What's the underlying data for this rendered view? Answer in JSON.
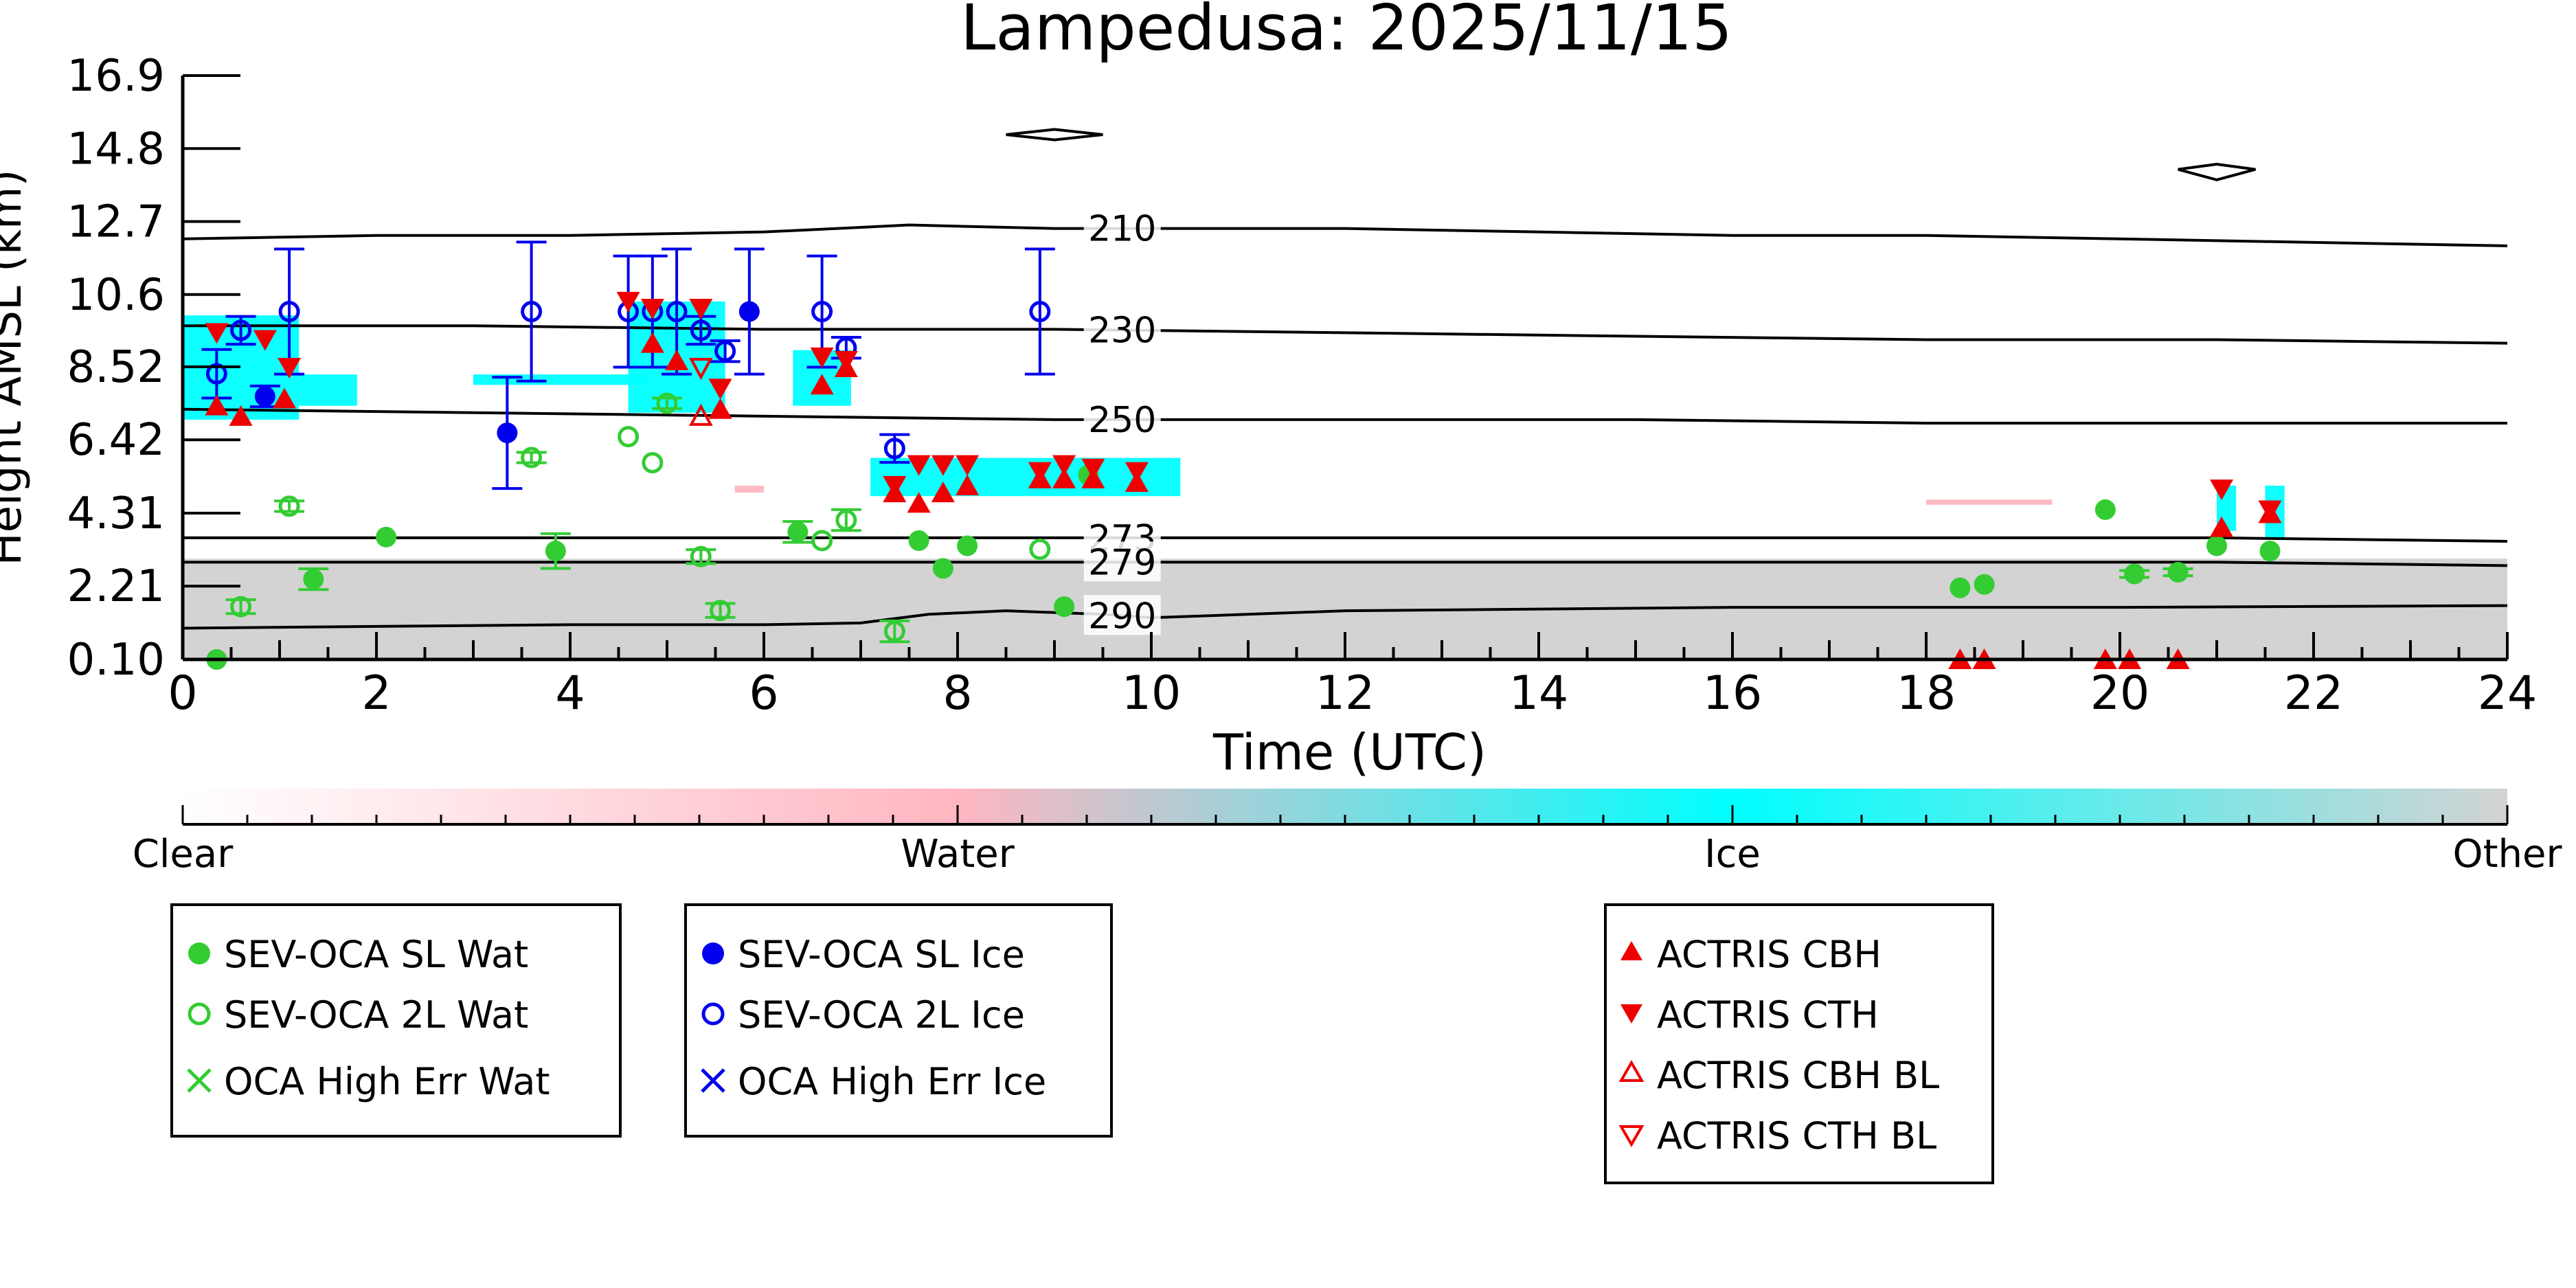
{
  "chart_data": {
    "type": "scatter",
    "title": "Lampedusa: 2025/11/15",
    "xlabel": "Time (UTC)",
    "ylabel": "Height AMSL (km)",
    "xlim": [
      0,
      24
    ],
    "ylim": [
      0.1,
      16.9
    ],
    "x_ticks": [
      "0",
      "2",
      "4",
      "6",
      "8",
      "10",
      "12",
      "14",
      "16",
      "18",
      "20",
      "22",
      "24"
    ],
    "y_ticks": [
      "0.10",
      "2.21",
      "4.31",
      "6.42",
      "8.52",
      "10.6",
      "12.7",
      "14.8",
      "16.9"
    ],
    "y_tick_values": [
      0.1,
      2.21,
      4.31,
      6.42,
      8.52,
      10.6,
      12.7,
      14.8,
      16.9
    ],
    "colors": {
      "sev_wat": "#33cc33",
      "sev_ice": "#0000ee",
      "actris": "#ee0000",
      "clear": "#ffffff",
      "water": "#ffb6c1",
      "ice": "#00ffff",
      "other": "#d3d3d3"
    },
    "isotherms": [
      {
        "label": "210",
        "x": [
          0,
          2,
          4,
          6,
          7.5,
          9,
          10,
          12,
          14,
          16,
          18,
          20,
          22,
          24
        ],
        "y": [
          12.2,
          12.3,
          12.3,
          12.4,
          12.6,
          12.5,
          12.5,
          12.5,
          12.4,
          12.3,
          12.3,
          12.2,
          12.1,
          12.0
        ]
      },
      {
        "label": "230",
        "x": [
          0,
          3,
          6,
          9,
          12,
          15,
          18,
          21,
          24
        ],
        "y": [
          9.7,
          9.7,
          9.6,
          9.6,
          9.5,
          9.4,
          9.3,
          9.3,
          9.2
        ]
      },
      {
        "label": "250",
        "x": [
          0,
          3,
          6,
          9,
          12,
          15,
          18,
          21,
          24
        ],
        "y": [
          7.3,
          7.2,
          7.1,
          7.0,
          7.0,
          7.0,
          6.9,
          6.9,
          6.9
        ]
      },
      {
        "label": "273",
        "x": [
          0,
          3,
          6,
          9,
          12,
          15,
          18,
          21,
          24
        ],
        "y": [
          3.6,
          3.6,
          3.6,
          3.6,
          3.6,
          3.6,
          3.6,
          3.6,
          3.5
        ]
      },
      {
        "label": "279",
        "x": [
          0,
          3,
          6,
          9,
          12,
          15,
          18,
          21,
          24
        ],
        "y": [
          2.9,
          2.9,
          2.9,
          2.9,
          2.9,
          2.9,
          2.9,
          2.9,
          2.8
        ]
      },
      {
        "label": "290",
        "x": [
          0,
          2,
          4,
          6,
          7,
          7.7,
          8.5,
          9.5,
          10,
          12,
          16,
          20,
          24
        ],
        "y": [
          1.0,
          1.05,
          1.1,
          1.1,
          1.15,
          1.4,
          1.5,
          1.4,
          1.3,
          1.5,
          1.6,
          1.6,
          1.65
        ]
      }
    ],
    "contours": [
      {
        "x": [
          8.5,
          9.0,
          9.5,
          9.0,
          8.5
        ],
        "y": [
          15.2,
          15.35,
          15.2,
          15.05,
          15.2
        ]
      },
      {
        "x": [
          20.6,
          21.0,
          21.4,
          21.0,
          20.6
        ],
        "y": [
          14.2,
          14.35,
          14.2,
          13.9,
          14.2
        ]
      }
    ],
    "classification_regions": [
      {
        "class": "other",
        "x": [
          0,
          24
        ],
        "y": [
          0.1,
          3.0
        ]
      },
      {
        "class": "ice",
        "x": [
          0.0,
          1.2
        ],
        "y": [
          7.0,
          10.0
        ]
      },
      {
        "class": "ice",
        "x": [
          1.2,
          1.8
        ],
        "y": [
          7.4,
          8.3
        ]
      },
      {
        "class": "ice",
        "x": [
          3.0,
          4.8
        ],
        "y": [
          8.0,
          8.3
        ]
      },
      {
        "class": "ice",
        "x": [
          4.6,
          5.6
        ],
        "y": [
          7.2,
          10.4
        ]
      },
      {
        "class": "ice",
        "x": [
          6.3,
          6.9
        ],
        "y": [
          7.4,
          9.0
        ]
      },
      {
        "class": "ice",
        "x": [
          7.1,
          10.3
        ],
        "y": [
          4.8,
          5.9
        ]
      },
      {
        "class": "ice",
        "x": [
          21.0,
          21.2
        ],
        "y": [
          3.8,
          5.1
        ]
      },
      {
        "class": "ice",
        "x": [
          21.5,
          21.7
        ],
        "y": [
          3.6,
          5.1
        ]
      },
      {
        "class": "water",
        "x": [
          18.0,
          19.3
        ],
        "y": [
          4.55,
          4.7
        ]
      },
      {
        "class": "water",
        "x": [
          5.7,
          6.0
        ],
        "y": [
          4.9,
          5.1
        ]
      }
    ],
    "series": [
      {
        "name": "SEV-OCA SL Wat",
        "marker": "filled-circle",
        "color": "#33cc33",
        "x": [
          0.35,
          1.35,
          2.1,
          3.85,
          6.35,
          7.6,
          7.85,
          8.1,
          9.1,
          9.35,
          18.35,
          18.6,
          19.85,
          20.15,
          20.6,
          21.0,
          21.55
        ],
        "y": [
          0.1,
          2.41,
          3.62,
          3.22,
          3.77,
          3.52,
          2.72,
          3.37,
          1.62,
          5.41,
          2.16,
          2.26,
          4.41,
          2.56,
          2.61,
          3.37,
          3.22
        ],
        "err": [
          0,
          0.3,
          0,
          0.5,
          0.3,
          0,
          0,
          0,
          0,
          0,
          0,
          0,
          0,
          0.1,
          0.1,
          0,
          0
        ]
      },
      {
        "name": "SEV-OCA 2L Wat",
        "marker": "open-circle",
        "color": "#33cc33",
        "x": [
          0.6,
          1.1,
          3.6,
          4.6,
          4.85,
          5.0,
          5.35,
          5.55,
          6.6,
          6.85,
          7.35,
          8.85
        ],
        "y": [
          1.62,
          4.51,
          5.91,
          6.51,
          5.76,
          7.47,
          3.06,
          1.51,
          3.52,
          4.11,
          0.91,
          3.27
        ],
        "err": [
          0.2,
          0.15,
          0.15,
          0,
          0,
          0.15,
          0.2,
          0.2,
          0,
          0.3,
          0.3,
          0
        ]
      },
      {
        "name": "OCA High Err Wat",
        "marker": "x",
        "color": "#33cc33",
        "x": [],
        "y": []
      },
      {
        "name": "SEV-OCA SL Ice",
        "marker": "filled-circle",
        "color": "#0000ee",
        "x": [
          0.85,
          3.35,
          5.85
        ],
        "y": [
          7.67,
          6.62,
          10.11
        ],
        "err": [
          0.3,
          1.6,
          1.8
        ]
      },
      {
        "name": "SEV-OCA 2L Ice",
        "marker": "open-circle",
        "color": "#0000ee",
        "x": [
          0.35,
          0.6,
          1.1,
          3.6,
          4.6,
          4.85,
          5.1,
          5.35,
          5.6,
          6.6,
          6.85,
          7.35,
          8.85
        ],
        "y": [
          8.32,
          9.57,
          10.11,
          10.11,
          10.11,
          10.11,
          10.11,
          9.57,
          8.97,
          10.11,
          9.07,
          6.17,
          10.11
        ],
        "err": [
          0.7,
          0.4,
          1.8,
          2.0,
          1.6,
          1.6,
          1.8,
          0.4,
          0.3,
          1.6,
          0.3,
          0.4,
          1.8
        ]
      },
      {
        "name": "OCA High Err Ice",
        "marker": "x",
        "color": "#0000ee",
        "x": [],
        "y": []
      },
      {
        "name": "ACTRIS CBH",
        "marker": "filled-triangle-up",
        "color": "#ee0000",
        "x": [
          0.35,
          0.6,
          1.05,
          4.85,
          5.1,
          5.55,
          6.6,
          6.85,
          7.35,
          7.6,
          7.85,
          8.1,
          8.85,
          9.1,
          9.4,
          9.85,
          18.35,
          18.6,
          19.85,
          20.1,
          20.6,
          21.05,
          21.55
        ],
        "y": [
          7.4,
          7.1,
          7.6,
          9.2,
          8.7,
          7.3,
          8.0,
          8.5,
          4.9,
          4.6,
          4.9,
          5.1,
          5.3,
          5.3,
          5.3,
          5.2,
          0.1,
          0.1,
          0.1,
          0.1,
          0.1,
          3.9,
          4.3
        ]
      },
      {
        "name": "ACTRIS CTH",
        "marker": "filled-triangle-down",
        "color": "#ee0000",
        "x": [
          0.35,
          0.85,
          1.1,
          4.6,
          4.85,
          5.35,
          5.55,
          6.6,
          6.85,
          7.35,
          7.6,
          7.85,
          8.1,
          8.85,
          9.1,
          9.4,
          9.85,
          21.05,
          21.55
        ],
        "y": [
          9.5,
          9.3,
          8.5,
          10.4,
          10.2,
          10.2,
          7.9,
          8.8,
          8.7,
          5.1,
          5.7,
          5.7,
          5.7,
          5.5,
          5.7,
          5.6,
          5.5,
          5.0,
          4.4
        ]
      },
      {
        "name": "ACTRIS CBH BL",
        "marker": "open-triangle-up",
        "color": "#ee0000",
        "x": [
          5.35
        ],
        "y": [
          7.1
        ]
      },
      {
        "name": "ACTRIS CTH BL",
        "marker": "open-triangle-down",
        "color": "#ee0000",
        "x": [
          5.35
        ],
        "y": [
          8.5
        ]
      }
    ],
    "colorbar": {
      "labels": [
        "Clear",
        "Water",
        "Ice",
        "Other"
      ]
    },
    "legend_boxes": [
      [
        "SEV-OCA SL Wat",
        "SEV-OCA 2L Wat",
        "OCA High Err Wat"
      ],
      [
        "SEV-OCA SL Ice",
        "SEV-OCA 2L Ice",
        "OCA High Err Ice"
      ],
      [
        "ACTRIS CBH",
        "ACTRIS CTH",
        "ACTRIS CBH BL",
        "ACTRIS CTH BL"
      ]
    ]
  }
}
